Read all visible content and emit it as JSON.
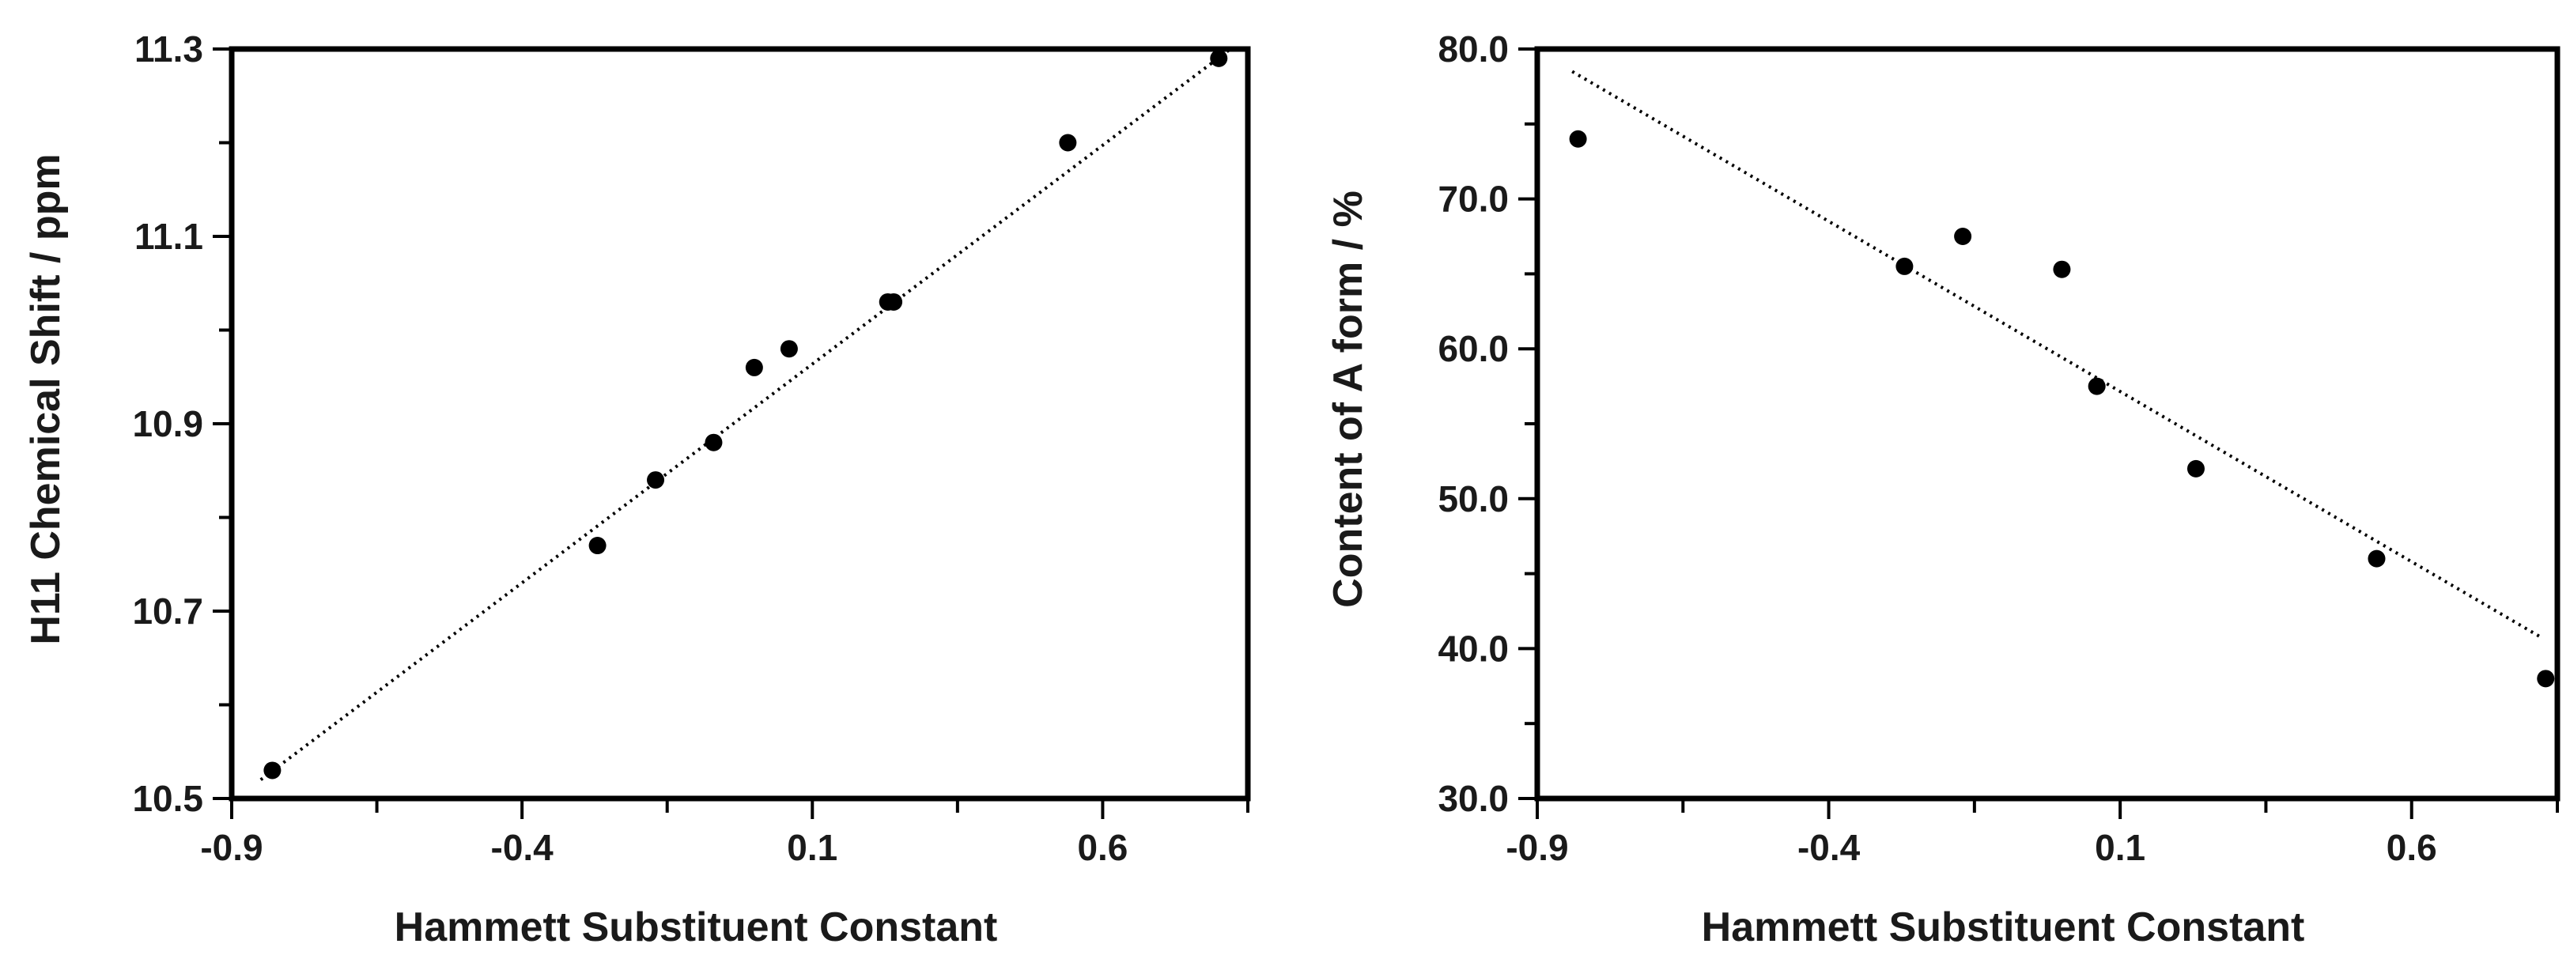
{
  "chart_data": [
    {
      "type": "scatter",
      "title": "",
      "xlabel": "Hammett Substituent Constant",
      "ylabel": "H11 Chemical Shift / ppm",
      "xlim": [
        -0.9,
        0.85
      ],
      "ylim": [
        10.5,
        11.3
      ],
      "x_ticks": [
        "-0.9",
        "-0.4",
        "0.1",
        "0.6"
      ],
      "y_ticks": [
        "10.5",
        "10.7",
        "10.9",
        "11.1",
        "11.3"
      ],
      "grid": false,
      "trendline": {
        "style": "dotted",
        "x": [
          -0.85,
          0.82
        ],
        "y": [
          10.52,
          11.3
        ]
      },
      "points": [
        {
          "x": -0.83,
          "y": 10.53
        },
        {
          "x": -0.27,
          "y": 10.77
        },
        {
          "x": -0.17,
          "y": 10.84
        },
        {
          "x": -0.07,
          "y": 10.88
        },
        {
          "x": 0.0,
          "y": 10.96
        },
        {
          "x": 0.06,
          "y": 10.98
        },
        {
          "x": 0.23,
          "y": 11.03
        },
        {
          "x": 0.24,
          "y": 11.03
        },
        {
          "x": 0.54,
          "y": 11.2
        },
        {
          "x": 0.8,
          "y": 11.29
        }
      ],
      "colors": {
        "points": "#000000",
        "trendline": "#000000",
        "axes": "#000000"
      }
    },
    {
      "type": "scatter",
      "title": "",
      "xlabel": "Hammett Substituent Constant",
      "ylabel": "Content of A form / %",
      "xlim": [
        -0.9,
        0.85
      ],
      "ylim": [
        30.0,
        80.0
      ],
      "x_ticks": [
        "-0.9",
        "-0.4",
        "0.1",
        "0.6"
      ],
      "y_ticks": [
        "30.0",
        "40.0",
        "50.0",
        "60.0",
        "70.0",
        "80.0"
      ],
      "grid": false,
      "trendline": {
        "style": "dotted",
        "x": [
          -0.84,
          0.82
        ],
        "y": [
          78.5,
          40.8
        ]
      },
      "points": [
        {
          "x": -0.83,
          "y": 74.0
        },
        {
          "x": -0.27,
          "y": 65.5
        },
        {
          "x": -0.17,
          "y": 67.5
        },
        {
          "x": 0.0,
          "y": 65.3
        },
        {
          "x": 0.06,
          "y": 57.5
        },
        {
          "x": 0.23,
          "y": 52.0
        },
        {
          "x": 0.54,
          "y": 46.0
        },
        {
          "x": 0.83,
          "y": 38.0
        }
      ],
      "colors": {
        "points": "#000000",
        "trendline": "#000000",
        "axes": "#000000"
      }
    }
  ]
}
